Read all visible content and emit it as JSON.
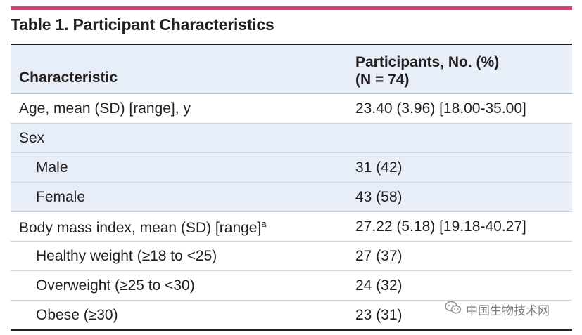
{
  "title": "Table 1. Participant Characteristics",
  "header": {
    "left": "Characteristic",
    "right_line1": "Participants, No. (%)",
    "right_line2": "(N = 74)"
  },
  "rows": [
    {
      "label": "Age, mean (SD) [range], y",
      "value": "23.40 (3.96) [18.00-35.00]"
    },
    {
      "label": "Sex",
      "value": ""
    },
    {
      "label": "Male",
      "value": "31 (42)"
    },
    {
      "label": "Female",
      "value": "43 (58)"
    },
    {
      "label": "Body mass index, mean (SD) [range]",
      "sup": "a",
      "value": "27.22 (5.18) [19.18-40.27]"
    },
    {
      "label": "Healthy weight (≥18 to <25)",
      "value": "27 (37)"
    },
    {
      "label": "Overweight (≥25 to <30)",
      "value": "24 (32)"
    },
    {
      "label": "Obese (≥30)",
      "value": "23 (31)"
    }
  ],
  "watermark": "中国生物技术网",
  "colors": {
    "accent": "#e0406e",
    "shade": "#e8eef8"
  }
}
